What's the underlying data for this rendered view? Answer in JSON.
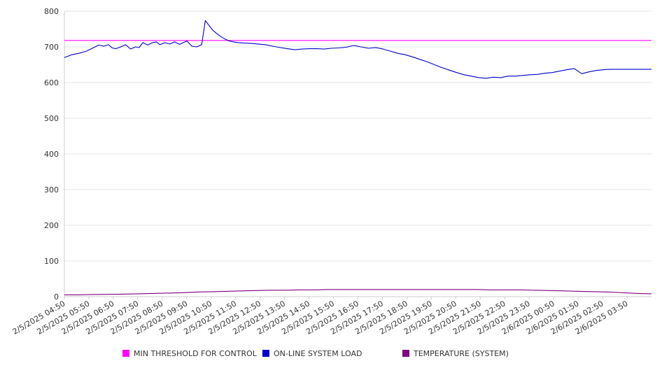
{
  "chart_data": {
    "type": "line",
    "ylim": [
      0,
      800
    ],
    "yticks": [
      0,
      100,
      200,
      300,
      400,
      500,
      600,
      700,
      800
    ],
    "x_tick_labels": [
      "2/5/2025 04:50",
      "2/5/2025 05:50",
      "2/5/2025 06:50",
      "2/5/2025 07:50",
      "2/5/2025 08:50",
      "2/5/2025 09:50",
      "2/5/2025 10:50",
      "2/5/2025 11:50",
      "2/5/2025 12:50",
      "2/5/2025 13:50",
      "2/5/2025 14:50",
      "2/5/2025 15:50",
      "2/5/2025 16:50",
      "2/5/2025 17:50",
      "2/5/2025 18:50",
      "2/5/2025 19:50",
      "2/5/2025 20:50",
      "2/5/2025 21:50",
      "2/5/2025 22:50",
      "2/5/2025 23:50",
      "2/6/2025 00:50",
      "2/6/2025 01:50",
      "2/6/2025 02:50",
      "2/6/2025 03:50"
    ],
    "x_range_hours": [
      0,
      23.95
    ],
    "grid": "horizontal",
    "legend_position": "bottom",
    "series": [
      {
        "name": "MIN THRESHOLD FOR CONTROL",
        "color": "#ff00ff",
        "x": [
          0,
          23.95
        ],
        "y": [
          718,
          718
        ]
      },
      {
        "name": "ON-LINE SYSTEM LOAD",
        "color": "#0000cc",
        "x": [
          0,
          0.3,
          0.6,
          0.9,
          1.2,
          1.4,
          1.6,
          1.8,
          1.95,
          2.1,
          2.3,
          2.5,
          2.7,
          2.9,
          3.05,
          3.2,
          3.4,
          3.6,
          3.75,
          3.9,
          4.1,
          4.3,
          4.5,
          4.7,
          4.85,
          5.0,
          5.2,
          5.4,
          5.6,
          5.75,
          5.9,
          6.05,
          6.2,
          6.4,
          6.55,
          6.7,
          6.9,
          7.1,
          7.3,
          7.6,
          7.9,
          8.2,
          8.5,
          8.8,
          9.1,
          9.4,
          9.7,
          10.0,
          10.3,
          10.6,
          10.9,
          11.2,
          11.5,
          11.8,
          12.1,
          12.4,
          12.7,
          13.0,
          13.3,
          13.6,
          13.9,
          14.2,
          14.5,
          14.8,
          15.1,
          15.4,
          15.7,
          16.0,
          16.3,
          16.6,
          16.9,
          17.2,
          17.5,
          17.8,
          18.1,
          18.4,
          18.7,
          19.0,
          19.3,
          19.6,
          19.9,
          20.2,
          20.5,
          20.8,
          21.1,
          21.4,
          21.7,
          22.0,
          22.3,
          22.6,
          22.85,
          23.0,
          23.3,
          23.6,
          23.95
        ],
        "y": [
          670,
          678,
          682,
          688,
          698,
          705,
          702,
          706,
          697,
          695,
          700,
          706,
          694,
          700,
          698,
          712,
          705,
          712,
          714,
          706,
          712,
          708,
          714,
          707,
          712,
          716,
          702,
          700,
          706,
          774,
          760,
          747,
          738,
          728,
          722,
          717,
          714,
          712,
          711,
          710,
          708,
          706,
          702,
          698,
          695,
          692,
          694,
          695,
          695,
          694,
          696,
          697,
          699,
          704,
          700,
          696,
          698,
          694,
          688,
          682,
          678,
          672,
          665,
          658,
          650,
          642,
          635,
          628,
          622,
          618,
          614,
          612,
          615,
          614,
          618,
          618,
          620,
          622,
          623,
          626,
          628,
          632,
          636,
          639,
          625,
          630,
          634,
          636,
          637,
          637,
          637,
          637,
          637,
          637,
          637
        ]
      },
      {
        "name": "TEMPERATURE (SYSTEM)",
        "color": "#800080",
        "x": [
          0,
          0.6,
          1.2,
          2.4,
          3.0,
          3.6,
          4.2,
          4.8,
          5.4,
          6.0,
          6.6,
          7.2,
          7.8,
          8.4,
          9.0,
          9.6,
          10.2,
          10.8,
          11.4,
          12.0,
          12.6,
          13.2,
          13.8,
          14.4,
          15.0,
          15.6,
          16.2,
          16.8,
          17.4,
          18.0,
          18.6,
          19.2,
          19.8,
          20.4,
          21.0,
          21.6,
          22.2,
          22.8,
          23.4,
          23.95
        ],
        "y": [
          5,
          5,
          6,
          7,
          8,
          9,
          10,
          11,
          13,
          14,
          15,
          16,
          17,
          18,
          18,
          19,
          19,
          20,
          20,
          20,
          20,
          20,
          20,
          20,
          20,
          20,
          20,
          20,
          19,
          19,
          19,
          18,
          17,
          16,
          15,
          14,
          13,
          11,
          9,
          8
        ]
      }
    ]
  }
}
